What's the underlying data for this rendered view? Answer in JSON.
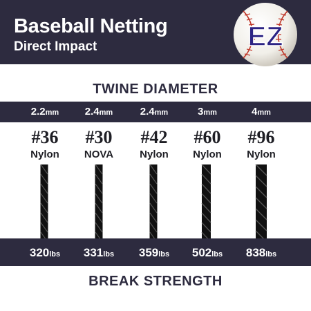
{
  "header": {
    "title": "Baseball Netting",
    "subtitle": "Direct Impact",
    "logo_text": "EZ"
  },
  "labels": {
    "diameter": "TWINE DIAMETER",
    "strength": "BREAK STRENGTH"
  },
  "colors": {
    "navy": "#2d2b3f",
    "logo_purple": "#2c2484",
    "stitch_red": "#c0392b",
    "twine": "#111111"
  },
  "twines": [
    {
      "diameter": "2.2",
      "diameter_unit": "mm",
      "number": "#36",
      "material": "Nylon",
      "strength": "320",
      "strength_unit": "lbs"
    },
    {
      "diameter": "2.4",
      "diameter_unit": "mm",
      "number": "#30",
      "material": "NOVA",
      "strength": "331",
      "strength_unit": "lbs"
    },
    {
      "diameter": "2.4",
      "diameter_unit": "mm",
      "number": "#42",
      "material": "Nylon",
      "strength": "359",
      "strength_unit": "lbs"
    },
    {
      "diameter": "3",
      "diameter_unit": "mm",
      "number": "#60",
      "material": "Nylon",
      "strength": "502",
      "strength_unit": "lbs"
    },
    {
      "diameter": "4",
      "diameter_unit": "mm",
      "number": "#96",
      "material": "Nylon",
      "strength": "838",
      "strength_unit": "lbs"
    }
  ]
}
